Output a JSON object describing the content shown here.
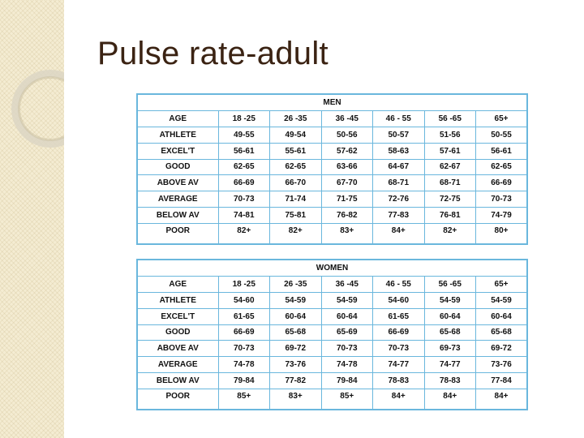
{
  "title": "Pulse rate-adult",
  "tables": [
    {
      "caption": "MEN",
      "header": [
        "AGE",
        "18 -25",
        "26 -35",
        "36 -45",
        "46 - 55",
        "56 -65",
        "65+"
      ],
      "rows": [
        [
          "ATHLETE",
          "49-55",
          "49-54",
          "50-56",
          "50-57",
          "51-56",
          "50-55"
        ],
        [
          "EXCEL'T",
          "56-61",
          "55-61",
          "57-62",
          "58-63",
          "57-61",
          "56-61"
        ],
        [
          "GOOD",
          "62-65",
          "62-65",
          "63-66",
          "64-67",
          "62-67",
          "62-65"
        ],
        [
          "ABOVE AV",
          "66-69",
          "66-70",
          "67-70",
          "68-71",
          "68-71",
          "66-69"
        ],
        [
          "AVERAGE",
          "70-73",
          "71-74",
          "71-75",
          "72-76",
          "72-75",
          "70-73"
        ],
        [
          "BELOW AV",
          "74-81",
          "75-81",
          "76-82",
          "77-83",
          "76-81",
          "74-79"
        ],
        [
          "POOR",
          "82+",
          "82+",
          "83+",
          "84+",
          "82+",
          "80+"
        ]
      ]
    },
    {
      "caption": "WOMEN",
      "header": [
        "AGE",
        "18 -25",
        "26 -35",
        "36 -45",
        "46 - 55",
        "56 -65",
        "65+"
      ],
      "rows": [
        [
          "ATHLETE",
          "54-60",
          "54-59",
          "54-59",
          "54-60",
          "54-59",
          "54-59"
        ],
        [
          "EXCEL'T",
          "61-65",
          "60-64",
          "60-64",
          "61-65",
          "60-64",
          "60-64"
        ],
        [
          "GOOD",
          "66-69",
          "65-68",
          "65-69",
          "66-69",
          "65-68",
          "65-68"
        ],
        [
          "ABOVE AV",
          "70-73",
          "69-72",
          "70-73",
          "70-73",
          "69-73",
          "69-72"
        ],
        [
          "AVERAGE",
          "74-78",
          "73-76",
          "74-78",
          "74-77",
          "74-77",
          "73-76"
        ],
        [
          "BELOW AV",
          "79-84",
          "77-82",
          "79-84",
          "78-83",
          "78-83",
          "77-84"
        ],
        [
          "POOR",
          "85+",
          "83+",
          "85+",
          "84+",
          "84+",
          "84+"
        ]
      ]
    }
  ]
}
